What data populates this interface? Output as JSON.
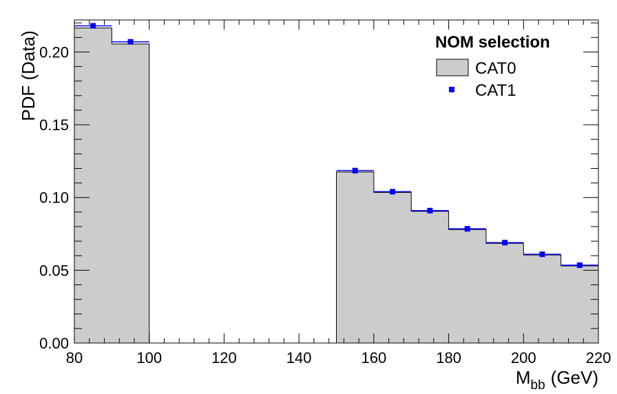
{
  "chart_data": {
    "type": "bar",
    "xlabel": "M",
    "xlabel_sub": "bb",
    "xlabel_unit": "(GeV)",
    "ylabel": "PDF (Data)",
    "xlim": [
      80,
      220
    ],
    "ylim": [
      0,
      0.222
    ],
    "x_ticks": [
      80,
      100,
      120,
      140,
      160,
      180,
      200,
      220
    ],
    "y_ticks": [
      0.0,
      0.05,
      0.1,
      0.15,
      0.2
    ],
    "y_tick_labels": [
      "0.00",
      "0.05",
      "0.10",
      "0.15",
      "0.20"
    ],
    "bin_edges": [
      80,
      90,
      100,
      110,
      120,
      130,
      140,
      150,
      160,
      170,
      180,
      190,
      200,
      210,
      220
    ],
    "legend": {
      "header": "NOM selection",
      "position": "top-right"
    },
    "series": [
      {
        "name": "CAT0",
        "style": "filled-histogram",
        "color": "#cccccc",
        "line_color": "#000000",
        "values": [
          0.2165,
          0.2055,
          0,
          0,
          0,
          0,
          0,
          0.1175,
          0.1035,
          0.0905,
          0.078,
          0.0685,
          0.0605,
          0.053
        ]
      },
      {
        "name": "CAT1",
        "style": "markers",
        "color": "#0000ff",
        "values": [
          0.218,
          0.207,
          null,
          null,
          null,
          null,
          null,
          0.1185,
          0.104,
          0.091,
          0.0785,
          0.069,
          0.061,
          0.0535
        ]
      }
    ]
  }
}
